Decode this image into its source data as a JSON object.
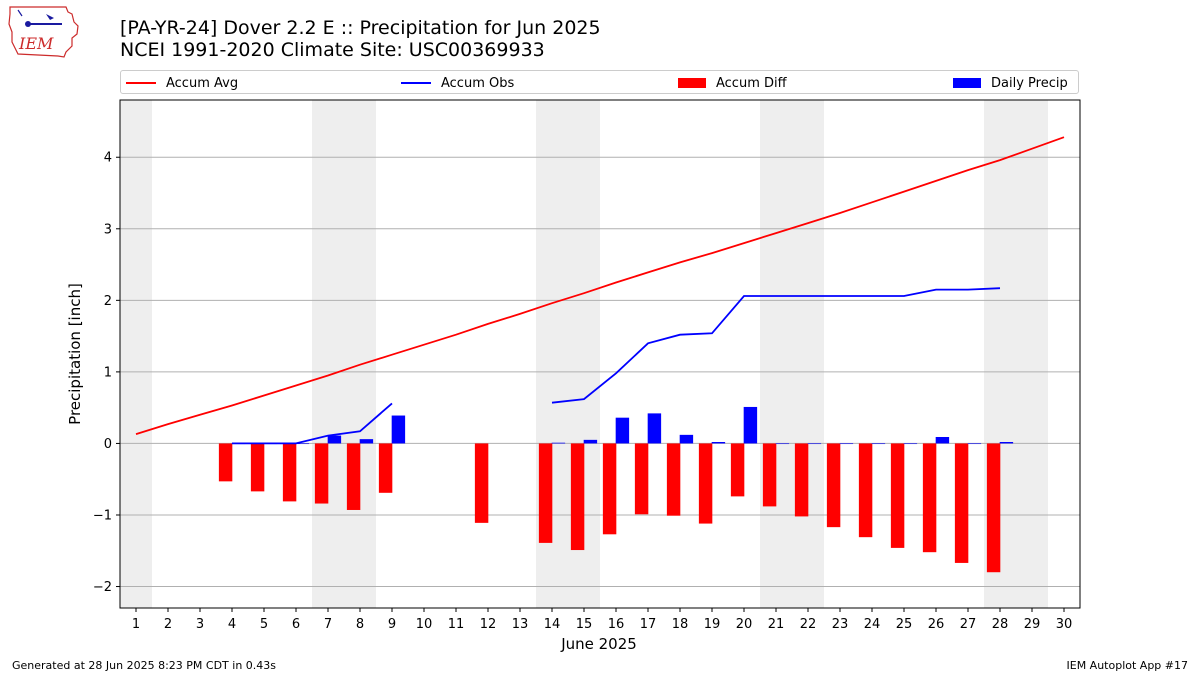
{
  "header": {
    "title_line1": "[PA-YR-24] Dover 2.2 E :: Precipitation for Jun 2025",
    "title_line2": "NCEI 1991-2020 Climate Site: USC00369933",
    "logo_text": "IEM"
  },
  "footer": {
    "left": "Generated at 28 Jun 2025 8:23 PM CDT in 0.43s",
    "right": "IEM Autoplot App #17"
  },
  "legend": [
    {
      "label": "Accum Avg",
      "kind": "line",
      "color": "#ff0000"
    },
    {
      "label": "Accum Obs",
      "kind": "line",
      "color": "#0000ff"
    },
    {
      "label": "Accum Diff",
      "kind": "box",
      "color": "#ff0000"
    },
    {
      "label": "Daily Precip",
      "kind": "box",
      "color": "#0000ff"
    }
  ],
  "chart_data": {
    "type": "bar",
    "xlabel": "June 2025",
    "ylabel": "Precipitation [inch]",
    "xlim": [
      0.5,
      30.5
    ],
    "ylim": [
      -2.3,
      4.8
    ],
    "yticks": [
      -2,
      -1,
      0,
      1,
      2,
      3,
      4
    ],
    "ytick_labels": [
      "−2",
      "−1",
      "0",
      "1",
      "2",
      "3",
      "4"
    ],
    "x_ticks": [
      1,
      2,
      3,
      4,
      5,
      6,
      7,
      8,
      9,
      10,
      11,
      12,
      13,
      14,
      15,
      16,
      17,
      18,
      19,
      20,
      21,
      22,
      23,
      24,
      25,
      26,
      27,
      28,
      29,
      30
    ],
    "weekend_shading": [
      [
        0.5,
        1.5
      ],
      [
        6.5,
        8.5
      ],
      [
        13.5,
        15.5
      ],
      [
        20.5,
        22.5
      ],
      [
        27.5,
        29.5
      ]
    ],
    "grid": "horizontal",
    "series": [
      {
        "name": "Accum Avg",
        "type": "line",
        "color": "#ff0000",
        "x": [
          1,
          2,
          3,
          4,
          5,
          6,
          7,
          8,
          9,
          10,
          11,
          12,
          13,
          14,
          15,
          16,
          17,
          18,
          19,
          20,
          21,
          22,
          23,
          24,
          25,
          26,
          27,
          28,
          29,
          30
        ],
        "values": [
          0.13,
          0.27,
          0.4,
          0.53,
          0.67,
          0.81,
          0.95,
          1.1,
          1.24,
          1.38,
          1.52,
          1.67,
          1.81,
          1.96,
          2.1,
          2.25,
          2.39,
          2.53,
          2.66,
          2.8,
          2.94,
          3.08,
          3.22,
          3.37,
          3.52,
          3.67,
          3.82,
          3.96,
          4.12,
          4.28
        ]
      },
      {
        "name": "Accum Obs",
        "type": "line",
        "color": "#0000ff",
        "x": [
          4,
          5,
          6,
          7,
          8,
          9,
          null,
          14,
          15,
          16,
          17,
          18,
          19,
          20,
          21,
          22,
          23,
          24,
          25,
          26,
          27,
          28
        ],
        "values": [
          0.0,
          0.0,
          0.0,
          0.11,
          0.17,
          0.56,
          null,
          0.57,
          0.62,
          0.98,
          1.4,
          1.52,
          1.54,
          2.06,
          2.06,
          2.06,
          2.06,
          2.06,
          2.06,
          2.15,
          2.15,
          2.17
        ]
      },
      {
        "name": "Accum Diff",
        "type": "bar",
        "color": "#ff0000",
        "x": [
          4,
          5,
          6,
          7,
          8,
          9,
          12,
          14,
          15,
          16,
          17,
          18,
          19,
          20,
          21,
          22,
          23,
          24,
          25,
          26,
          27,
          28
        ],
        "values": [
          -0.53,
          -0.67,
          -0.81,
          -0.84,
          -0.93,
          -0.69,
          -1.11,
          -1.39,
          -1.49,
          -1.27,
          -0.99,
          -1.01,
          -1.12,
          -0.74,
          -0.88,
          -1.02,
          -1.17,
          -1.31,
          -1.46,
          -1.52,
          -1.67,
          -1.8
        ]
      },
      {
        "name": "Daily Precip",
        "type": "bar",
        "color": "#0000ff",
        "x": [
          4,
          5,
          6,
          7,
          8,
          9,
          14,
          15,
          16,
          17,
          18,
          19,
          20,
          21,
          22,
          23,
          24,
          25,
          26,
          27,
          28
        ],
        "values": [
          0.0,
          0.0,
          0.0,
          0.11,
          0.06,
          0.39,
          0.01,
          0.05,
          0.36,
          0.42,
          0.12,
          0.02,
          0.51,
          0.0,
          0.0,
          0.0,
          0.0,
          0.0,
          0.09,
          0.0,
          0.02
        ]
      }
    ]
  }
}
